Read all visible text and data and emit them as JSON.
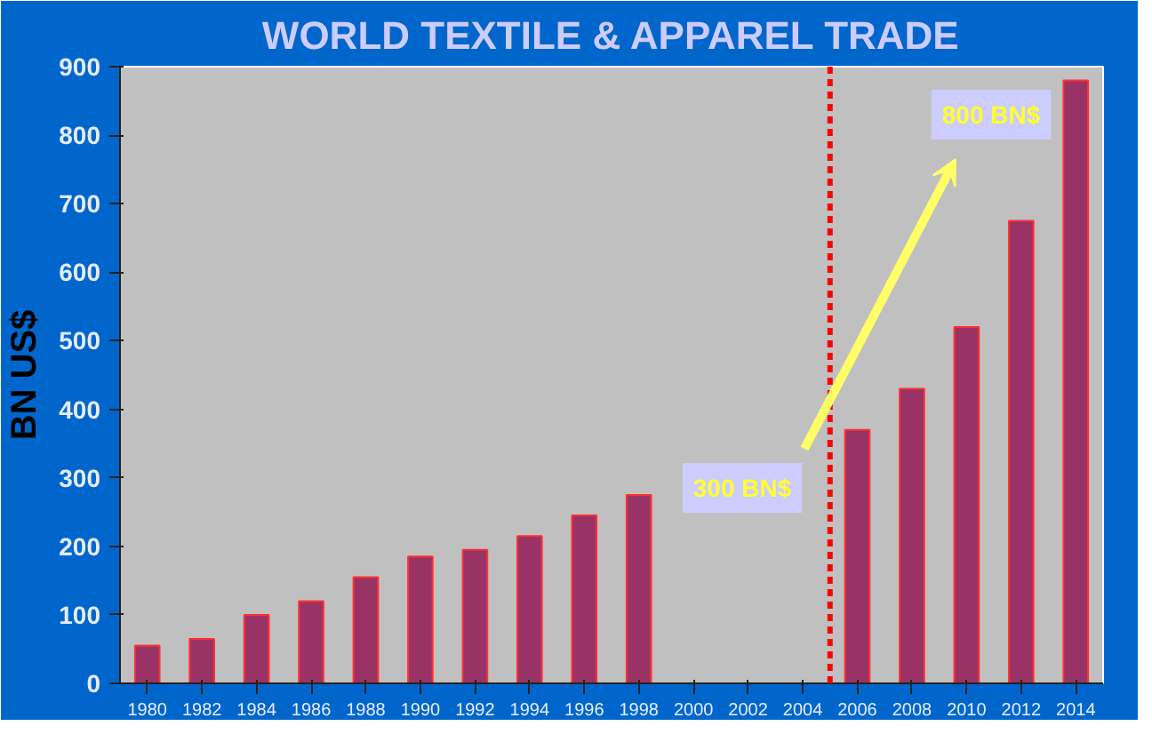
{
  "chart_data": {
    "type": "bar",
    "title": "WORLD TEXTILE & APPAREL TRADE",
    "ylabel": "BN US$",
    "x": [
      1980,
      1982,
      1984,
      1986,
      1988,
      1990,
      1992,
      1994,
      1996,
      1998,
      2000,
      2002,
      2004,
      2006,
      2008,
      2010,
      2012,
      2014
    ],
    "values": [
      55,
      65,
      100,
      120,
      155,
      185,
      195,
      215,
      245,
      275,
      null,
      null,
      null,
      370,
      430,
      520,
      675,
      880
    ],
    "color": "#993366",
    "xlim": [
      1979,
      2015
    ],
    "xticks": [
      1980,
      1982,
      1984,
      1986,
      1988,
      1990,
      1992,
      1994,
      1996,
      1998,
      2000,
      2002,
      2004,
      2006,
      2008,
      2010,
      2012,
      2014
    ],
    "ylim": [
      0,
      900
    ],
    "yticks": [
      0,
      100,
      200,
      300,
      400,
      500,
      600,
      700,
      800,
      900
    ],
    "grid": false,
    "ref_lines": [
      {
        "axis": "x",
        "value": 2005,
        "color": "#ff0000",
        "line_style": "dotted"
      }
    ],
    "annotations": [
      "300 BN$",
      "800 BN$"
    ]
  }
}
